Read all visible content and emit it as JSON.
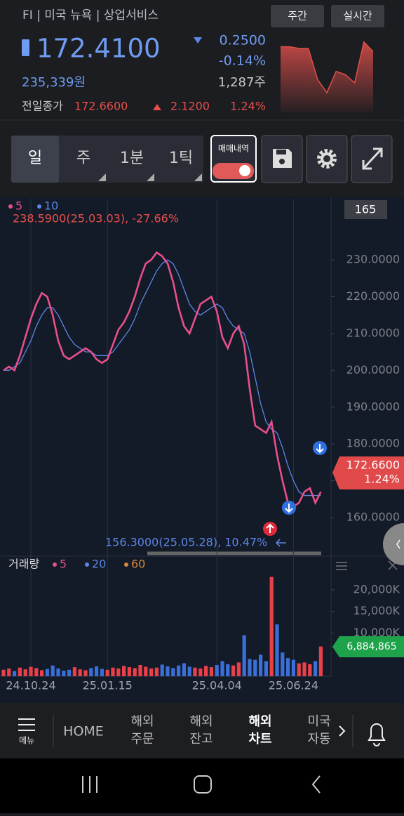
{
  "header": {
    "symbol_line": "FI | 미국 뉴욕 | 상업서비스",
    "button_weekly": "주간",
    "button_realtime": "실시간",
    "price": "172.4100",
    "change": "0.2500",
    "change_pct": "-0.14%",
    "krw_price": "235,339원",
    "volume_shares": "1,287주",
    "prev_close_label": "전일종가",
    "prev_close": "172.6600",
    "prev_change": "2.1200",
    "prev_change_pct": "1.24%"
  },
  "toolbar": {
    "day": "일",
    "week": "주",
    "minute": "1분",
    "tick": "1틱",
    "trade_history": "매매내역"
  },
  "nav": {
    "menu": "메뉴",
    "home": "HOME",
    "items": [
      [
        "해외",
        "주문"
      ],
      [
        "해외",
        "잔고"
      ],
      [
        "해외",
        "차트"
      ],
      [
        "미국",
        "자동"
      ]
    ]
  },
  "chart_data": [
    {
      "type": "line",
      "categories": [
        null,
        null,
        null,
        null,
        null,
        "24.10.24",
        null,
        null,
        null,
        null,
        null,
        null,
        null,
        null,
        null,
        null,
        null,
        null,
        null,
        "25.01.15",
        null,
        null,
        null,
        null,
        null,
        null,
        null,
        null,
        null,
        null,
        null,
        null,
        null,
        null,
        null,
        null,
        null,
        null,
        null,
        "25.04.04",
        null,
        null,
        null,
        null,
        null,
        null,
        null,
        null,
        null,
        null,
        null,
        null,
        null,
        "25.06.24",
        null,
        null,
        null,
        null,
        null
      ],
      "series": [
        {
          "name": "5",
          "color": "#e8508a",
          "values": [
            200,
            201,
            200,
            204,
            209,
            214,
            218,
            221,
            220,
            215,
            208,
            204,
            203,
            204,
            205,
            206,
            205,
            203,
            202,
            203,
            207,
            211,
            213,
            216,
            220,
            225,
            229,
            230,
            232,
            231,
            229,
            224,
            217,
            212,
            210,
            214,
            218,
            219,
            220,
            216,
            209,
            206,
            210,
            212,
            207,
            195,
            185,
            184,
            183,
            186,
            177,
            170,
            164,
            163,
            164,
            167,
            168,
            164,
            167
          ]
        },
        {
          "name": "10",
          "color": "#5d86e6",
          "values": [
            200,
            200,
            201,
            202,
            205,
            208,
            212,
            215,
            217,
            217,
            215,
            212,
            209,
            207,
            206,
            205,
            205,
            204,
            204,
            204,
            205,
            207,
            209,
            211,
            214,
            218,
            221,
            224,
            227,
            229,
            230,
            229,
            226,
            222,
            218,
            216,
            215,
            216,
            217,
            218,
            217,
            214,
            212,
            211,
            210,
            205,
            198,
            191,
            186,
            184,
            183,
            179,
            174,
            170,
            167,
            166,
            166,
            166,
            166
          ]
        }
      ],
      "ylim": [
        149.9,
        246.6
      ],
      "yticks": [
        {
          "value": 160,
          "label": "160.0000"
        },
        {
          "value": 170,
          "label": "170.0000"
        },
        {
          "value": 180,
          "label": "180.0000"
        },
        {
          "value": 190,
          "label": "190.0000"
        },
        {
          "value": 200,
          "label": "200.0000"
        },
        {
          "value": 210,
          "label": "210.0000"
        },
        {
          "value": 220,
          "label": "220.0000"
        },
        {
          "value": 230,
          "label": "230.0000"
        }
      ],
      "grid": false,
      "high_annotation": "238.5900(25.03.03), -27.66%",
      "low_annotation": "156.3000(25.05.28), 10.47%",
      "cursor_label": "165",
      "price_label": "172.6600",
      "price_change_label": "1.24%"
    },
    {
      "type": "bar",
      "title": "거래량",
      "ma_legend": [
        {
          "name": "5",
          "color": "#e8508a"
        },
        {
          "name": "20",
          "color": "#5d86e6"
        },
        {
          "name": "60",
          "color": "#d98a3a"
        }
      ],
      "up_color": "#e8414a",
      "down_color": "#3a6fd8",
      "values": [
        1500,
        1800,
        1200,
        2000,
        1600,
        2200,
        1900,
        1400,
        1700,
        2500,
        1800,
        1300,
        1500,
        2100,
        1600,
        1400,
        1900,
        2300,
        1700,
        1500,
        2000,
        1800,
        2400,
        2100,
        1900,
        2600,
        2200,
        1800,
        2000,
        2700,
        2300,
        1900,
        2500,
        3000,
        2200,
        2000,
        1800,
        2400,
        2100,
        2600,
        3500,
        2800,
        2500,
        3200,
        9500,
        4000,
        3800,
        5000,
        3500,
        23000,
        12000,
        5500,
        4200,
        3800,
        3000,
        3200,
        2800,
        3500,
        6885
      ],
      "ylim": [
        0,
        27300
      ],
      "yticks": [
        {
          "value": 10000,
          "label": "10,000K"
        },
        {
          "value": 15000,
          "label": "15,000K"
        },
        {
          "value": 20000,
          "label": "20,000K"
        }
      ],
      "current_label": "6,884,865"
    },
    {
      "type": "area",
      "color": "#e0504a",
      "values": [
        180,
        180,
        179,
        179,
        160,
        152,
        165,
        163,
        158,
        183,
        177
      ],
      "ylim": [
        140,
        185
      ]
    }
  ]
}
